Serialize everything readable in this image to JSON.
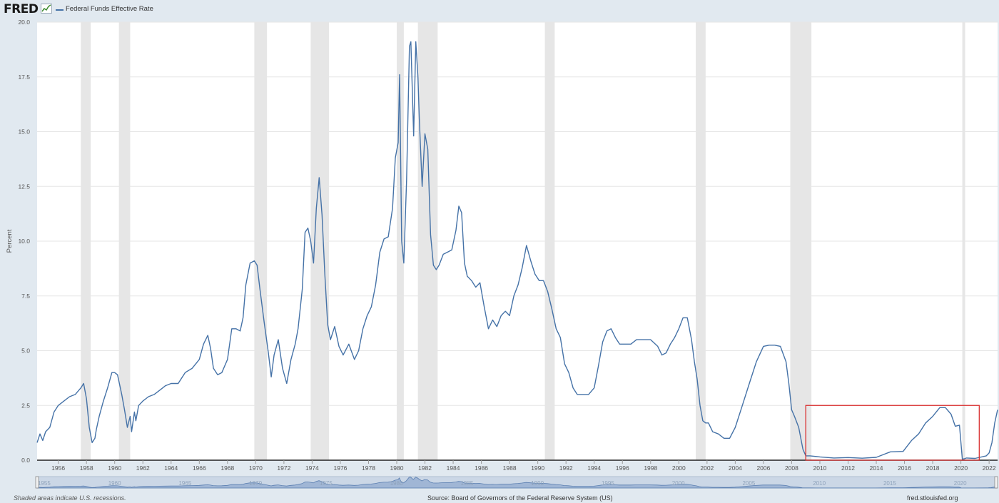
{
  "header": {
    "logo_text": "FRED",
    "logo_icon": "chart-line-icon",
    "legend_label": "Federal Funds Effective Rate"
  },
  "footer": {
    "recession_note": "Shaded areas indicate U.S. recessions.",
    "source": "Source: Board of Governors of the Federal Reserve System (US)",
    "site": "fred.stlouisfed.org"
  },
  "colors": {
    "background": "#e1e9f0",
    "plot_area": "#ffffff",
    "series": "#4572a7",
    "recession_shade": "#e6e6e6",
    "highlight_box": "#d93030"
  },
  "chart_data": {
    "type": "line",
    "title": "",
    "xlabel": "",
    "ylabel": "Percent",
    "xlim": [
      1954.5,
      2022.6
    ],
    "ylim": [
      0,
      20
    ],
    "y_ticks": [
      0,
      2.5,
      5,
      7.5,
      10,
      12.5,
      15,
      17.5,
      20
    ],
    "y_tick_labels": [
      "0.0",
      "2.5",
      "5.0",
      "7.5",
      "10.0",
      "12.5",
      "15.0",
      "17.5",
      "20.0"
    ],
    "x_ticks": [
      1956,
      1958,
      1960,
      1962,
      1964,
      1966,
      1968,
      1970,
      1972,
      1974,
      1976,
      1978,
      1980,
      1982,
      1984,
      1986,
      1988,
      1990,
      1992,
      1994,
      1996,
      1998,
      2000,
      2002,
      2004,
      2006,
      2008,
      2010,
      2012,
      2014,
      2016,
      2018,
      2020,
      2022
    ],
    "grid": true,
    "legend_position": "top-left",
    "recessions": [
      [
        1957.6,
        1958.3
      ],
      [
        1960.3,
        1961.1
      ],
      [
        1969.9,
        1970.8
      ],
      [
        1973.9,
        1975.2
      ],
      [
        1980.0,
        1980.5
      ],
      [
        1981.5,
        1982.9
      ],
      [
        1990.5,
        1991.2
      ],
      [
        2001.2,
        2001.9
      ],
      [
        2007.9,
        2009.4
      ],
      [
        2020.1,
        2020.3
      ]
    ],
    "highlight_box": {
      "x_range": [
        2009.0,
        2021.3
      ],
      "y_range": [
        0,
        2.5
      ]
    },
    "navigator_ticks": [
      "1955",
      "1960",
      "1965",
      "1970",
      "1975",
      "1980",
      "1985",
      "1990",
      "1995",
      "2000",
      "2005",
      "2010",
      "2015",
      "2020"
    ],
    "series": [
      {
        "name": "Federal Funds Effective Rate",
        "x": [
          1954.5,
          1954.7,
          1954.9,
          1955.1,
          1955.4,
          1955.7,
          1956.0,
          1956.4,
          1956.8,
          1957.2,
          1957.6,
          1957.8,
          1958.0,
          1958.2,
          1958.4,
          1958.6,
          1958.7,
          1958.9,
          1959.2,
          1959.5,
          1959.8,
          1960.0,
          1960.2,
          1960.5,
          1960.7,
          1960.9,
          1961.1,
          1961.2,
          1961.4,
          1961.5,
          1961.7,
          1962.0,
          1962.4,
          1962.8,
          1963.2,
          1963.6,
          1964.0,
          1964.5,
          1965.0,
          1965.5,
          1966.0,
          1966.3,
          1966.6,
          1966.8,
          1967.0,
          1967.3,
          1967.6,
          1968.0,
          1968.3,
          1968.6,
          1968.9,
          1969.1,
          1969.3,
          1969.6,
          1969.9,
          1970.1,
          1970.3,
          1970.6,
          1970.9,
          1971.1,
          1971.3,
          1971.6,
          1971.9,
          1972.2,
          1972.5,
          1972.8,
          1973.0,
          1973.3,
          1973.5,
          1973.7,
          1973.9,
          1974.1,
          1974.3,
          1974.5,
          1974.7,
          1974.9,
          1975.1,
          1975.3,
          1975.6,
          1975.9,
          1976.2,
          1976.6,
          1977.0,
          1977.3,
          1977.6,
          1977.9,
          1978.2,
          1978.5,
          1978.8,
          1979.1,
          1979.4,
          1979.7,
          1979.9,
          1980.1,
          1980.2,
          1980.35,
          1980.5,
          1980.7,
          1980.9,
          1981.0,
          1981.2,
          1981.35,
          1981.5,
          1981.6,
          1981.8,
          1982.0,
          1982.2,
          1982.4,
          1982.6,
          1982.8,
          1983.0,
          1983.3,
          1983.6,
          1983.9,
          1984.2,
          1984.4,
          1984.6,
          1984.8,
          1985.0,
          1985.3,
          1985.6,
          1985.9,
          1986.2,
          1986.5,
          1986.8,
          1987.1,
          1987.4,
          1987.7,
          1988.0,
          1988.3,
          1988.6,
          1988.9,
          1989.2,
          1989.5,
          1989.8,
          1990.1,
          1990.4,
          1990.7,
          1991.0,
          1991.3,
          1991.6,
          1991.9,
          1992.2,
          1992.5,
          1992.8,
          1993.2,
          1993.6,
          1994.0,
          1994.3,
          1994.6,
          1994.9,
          1995.2,
          1995.5,
          1995.8,
          1996.2,
          1996.6,
          1997.0,
          1997.5,
          1998.0,
          1998.5,
          1998.8,
          1999.1,
          1999.4,
          1999.7,
          2000.0,
          2000.3,
          2000.6,
          2000.9,
          2001.1,
          2001.3,
          2001.5,
          2001.7,
          2001.9,
          2002.1,
          2002.4,
          2002.8,
          2003.2,
          2003.6,
          2004.0,
          2004.5,
          2005.0,
          2005.5,
          2006.0,
          2006.4,
          2006.8,
          2007.2,
          2007.6,
          2007.8,
          2008.0,
          2008.2,
          2008.5,
          2008.8,
          2009.0,
          2009.3,
          2010.0,
          2011.0,
          2012.0,
          2013.0,
          2014.0,
          2015.0,
          2015.9,
          2016.5,
          2017.0,
          2017.5,
          2018.0,
          2018.5,
          2018.9,
          2019.3,
          2019.6,
          2019.9,
          2020.1,
          2020.25,
          2020.4,
          2021.0,
          2021.8,
          2022.0,
          2022.2,
          2022.4,
          2022.6
        ],
        "values": [
          0.8,
          1.2,
          0.9,
          1.3,
          1.5,
          2.2,
          2.5,
          2.7,
          2.9,
          3.0,
          3.3,
          3.5,
          2.8,
          1.5,
          0.8,
          1.0,
          1.4,
          2.0,
          2.7,
          3.3,
          4.0,
          4.0,
          3.9,
          3.0,
          2.3,
          1.5,
          2.0,
          1.3,
          2.2,
          1.8,
          2.5,
          2.7,
          2.9,
          3.0,
          3.2,
          3.4,
          3.5,
          3.5,
          4.0,
          4.2,
          4.6,
          5.3,
          5.7,
          5.1,
          4.2,
          3.9,
          4.0,
          4.6,
          6.0,
          6.0,
          5.9,
          6.5,
          8.0,
          9.0,
          9.1,
          8.9,
          7.8,
          6.3,
          4.9,
          3.8,
          4.8,
          5.5,
          4.2,
          3.5,
          4.6,
          5.3,
          6.0,
          7.8,
          10.4,
          10.6,
          10.0,
          9.0,
          11.5,
          12.9,
          11.2,
          8.5,
          6.2,
          5.5,
          6.1,
          5.2,
          4.8,
          5.3,
          4.6,
          5.0,
          6.0,
          6.6,
          7.0,
          8.0,
          9.5,
          10.1,
          10.2,
          11.5,
          13.8,
          14.5,
          17.6,
          10.0,
          9.0,
          12.8,
          18.9,
          19.1,
          14.8,
          19.1,
          17.5,
          15.6,
          12.5,
          14.9,
          14.2,
          10.3,
          8.9,
          8.7,
          8.9,
          9.4,
          9.5,
          9.6,
          10.5,
          11.6,
          11.3,
          9.0,
          8.4,
          8.2,
          7.9,
          8.1,
          7.0,
          6.0,
          6.4,
          6.1,
          6.6,
          6.8,
          6.6,
          7.5,
          8.0,
          8.8,
          9.8,
          9.1,
          8.5,
          8.2,
          8.2,
          7.7,
          6.9,
          6.0,
          5.6,
          4.4,
          4.0,
          3.3,
          3.0,
          3.0,
          3.0,
          3.3,
          4.3,
          5.4,
          5.9,
          6.0,
          5.6,
          5.3,
          5.3,
          5.3,
          5.5,
          5.5,
          5.5,
          5.2,
          4.8,
          4.9,
          5.3,
          5.6,
          6.0,
          6.5,
          6.5,
          5.5,
          4.5,
          3.7,
          2.5,
          1.8,
          1.7,
          1.7,
          1.3,
          1.2,
          1.0,
          1.0,
          1.5,
          2.5,
          3.5,
          4.5,
          5.2,
          5.25,
          5.25,
          5.2,
          4.5,
          3.5,
          2.3,
          2.0,
          1.5,
          0.5,
          0.2,
          0.2,
          0.15,
          0.1,
          0.12,
          0.09,
          0.13,
          0.38,
          0.4,
          0.9,
          1.2,
          1.7,
          2.0,
          2.4,
          2.4,
          2.1,
          1.55,
          1.6,
          0.05,
          0.07,
          0.1,
          0.08,
          0.2,
          0.33,
          0.8,
          1.7,
          2.3
        ]
      }
    ]
  }
}
